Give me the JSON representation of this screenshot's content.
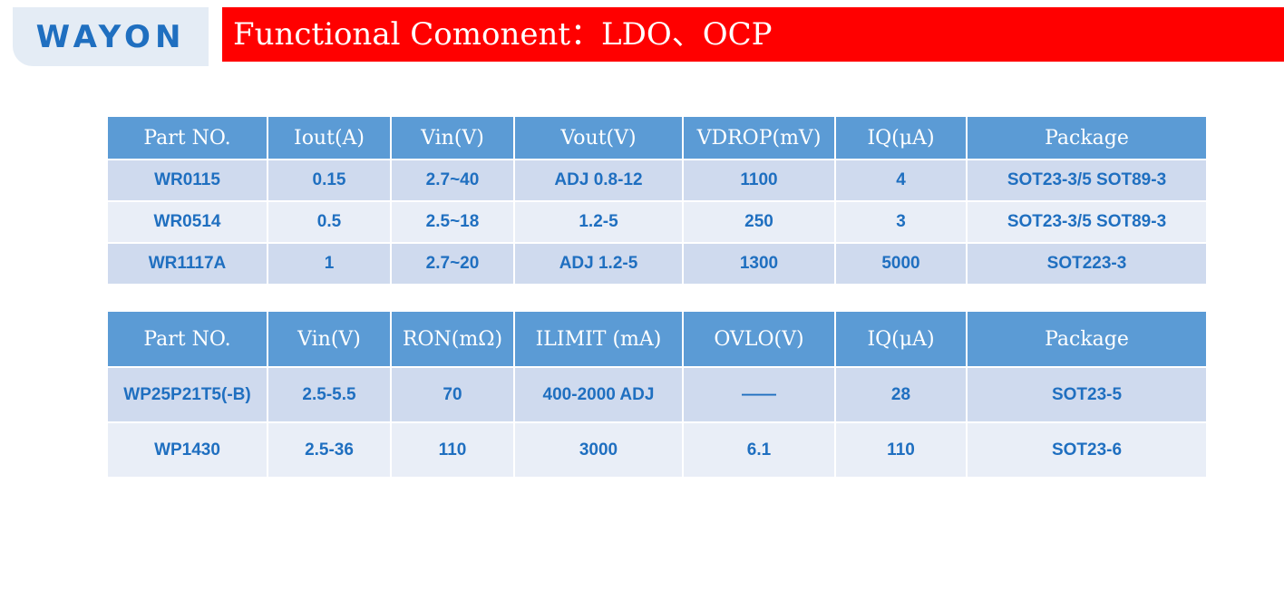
{
  "logo": "WAYON",
  "title": "Functional Comonent：LDO、OCP",
  "tables": [
    {
      "headers": [
        "Part NO.",
        "Iout(A)",
        "Vin(V)",
        "Vout(V)",
        "VDROP(mV)",
        "IQ(μA)",
        "Package"
      ],
      "rows": [
        [
          "WR0115",
          "0.15",
          "2.7~40",
          "ADJ 0.8-12",
          "1100",
          "4",
          "SOT23-3/5 SOT89-3"
        ],
        [
          "WR0514",
          "0.5",
          "2.5~18",
          "1.2-5",
          "250",
          "3",
          "SOT23-3/5 SOT89-3"
        ],
        [
          "WR1117A",
          "1",
          "2.7~20",
          "ADJ 1.2-5",
          "1300",
          "5000",
          "SOT223-3"
        ]
      ]
    },
    {
      "headers": [
        "Part NO.",
        "Vin(V)",
        "RON(mΩ)",
        "ILIMIT (mA)",
        "OVLO(V)",
        "IQ(μA)",
        "Package"
      ],
      "rows": [
        [
          "WP25P21T5(-B)",
          "2.5-5.5",
          "70",
          "400-2000 ADJ",
          "——",
          "28",
          "SOT23-5"
        ],
        [
          "WP1430",
          "2.5-36",
          "110",
          "3000",
          "6.1",
          "110",
          "SOT23-6"
        ]
      ]
    }
  ]
}
